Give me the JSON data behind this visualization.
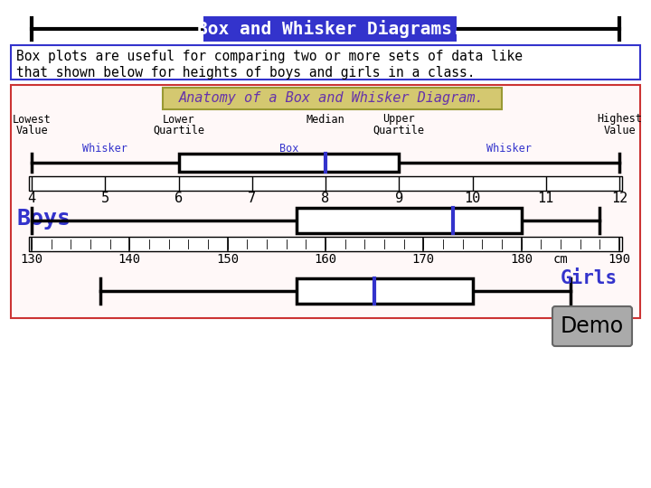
{
  "title": "Box and Whisker Diagrams.",
  "title_bg": "#3333cc",
  "title_color": "#ffffff",
  "description_line1": "Box plots are useful for comparing two or more sets of data like",
  "description_line2": "that shown below for heights of boys and girls in a class.",
  "anatomy_title": "Anatomy of a Box and Whisker Diagram.",
  "anatomy_title_bg": "#d4c870",
  "anatomy_title_color": "#6633aa",
  "anatomy_min": 4,
  "anatomy_q1": 6,
  "anatomy_median": 8,
  "anatomy_q3": 9,
  "anatomy_max": 12,
  "anatomy_axis_ticks": [
    4,
    5,
    6,
    7,
    8,
    9,
    10,
    11,
    12
  ],
  "anatomy_vmin": 4,
  "anatomy_vmax": 12,
  "boys_min": 130,
  "boys_q1": 157,
  "boys_median": 173,
  "boys_q3": 180,
  "boys_max": 188,
  "girls_min": 137,
  "girls_q1": 157,
  "girls_median": 165,
  "girls_q3": 175,
  "girls_max": 185,
  "axis_ticks": [
    130,
    140,
    150,
    160,
    170,
    180,
    190
  ],
  "axis_vmin": 130,
  "axis_vmax": 190,
  "median_color": "#3333cc",
  "bg_color": "#ffffff",
  "demo_bg": "#aaaaaa",
  "demo_text": "Demo"
}
